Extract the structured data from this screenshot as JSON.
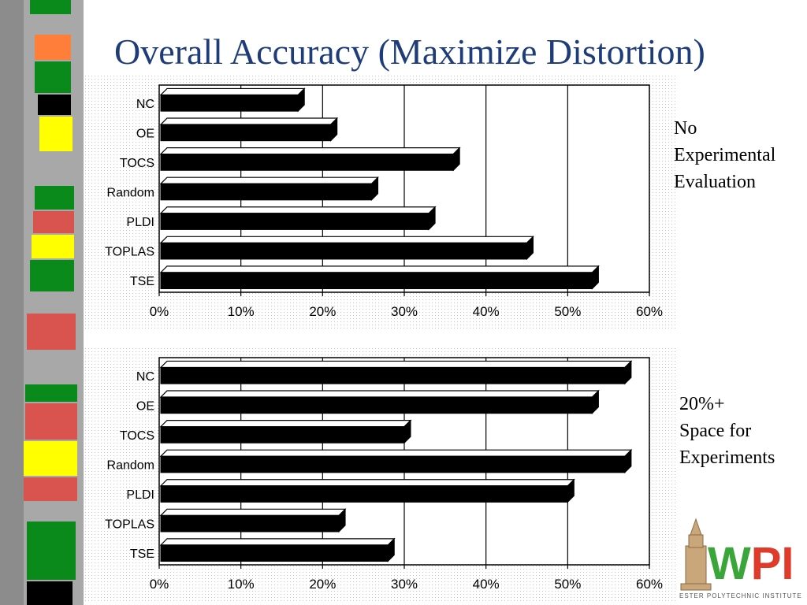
{
  "slide": {
    "title": "Overall Accuracy (Maximize Distortion)",
    "annotation_top": [
      "No",
      "Experimental",
      "Evaluation"
    ],
    "annotation_bottom": [
      "20%+",
      "Space for",
      "Experiments"
    ],
    "logo": {
      "text": "WPI",
      "subtext": "ESTER POLYTECHNIC INSTITUTE"
    }
  },
  "colors": {
    "title": "#1f3c7a",
    "bar": "#000000",
    "stripe_gray": "#9a9a9a",
    "stripe_green": "#0a8a1a",
    "stripe_orange": "#ff7f3a",
    "stripe_yellow": "#ffff00",
    "stripe_red": "#d9534f",
    "logo_green": "#3aa63a",
    "logo_red": "#e03a2a"
  },
  "chart_data": [
    {
      "type": "bar",
      "orientation": "horizontal",
      "categories": [
        "NC",
        "OE",
        "TOCS",
        "Random",
        "PLDI",
        "TOPLAS",
        "TSE"
      ],
      "values": [
        17,
        21,
        36,
        26,
        33,
        45,
        53
      ],
      "xlim": [
        0,
        60
      ],
      "xticks": [
        "0%",
        "10%",
        "20%",
        "30%",
        "40%",
        "50%",
        "60%"
      ],
      "grid": true,
      "legend": "none"
    },
    {
      "type": "bar",
      "orientation": "horizontal",
      "categories": [
        "NC",
        "OE",
        "TOCS",
        "Random",
        "PLDI",
        "TOPLAS",
        "TSE"
      ],
      "values": [
        57,
        53,
        30,
        57,
        50,
        22,
        28
      ],
      "xlim": [
        0,
        60
      ],
      "xticks": [
        "0%",
        "10%",
        "20%",
        "30%",
        "40%",
        "50%",
        "60%"
      ],
      "grid": true,
      "legend": "none"
    }
  ]
}
